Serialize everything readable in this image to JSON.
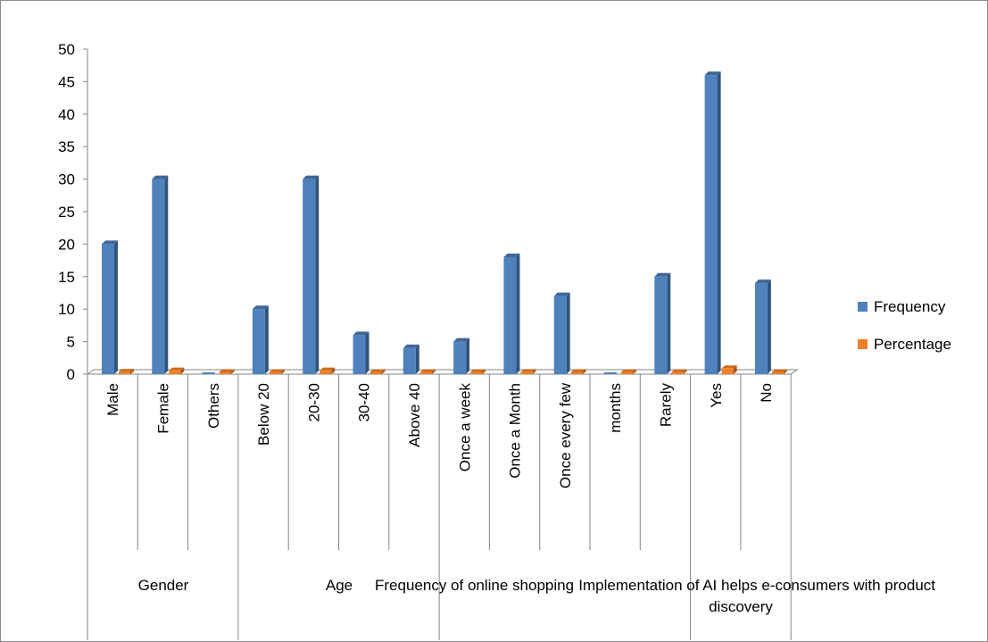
{
  "chart_data": {
    "type": "bar",
    "categories": [
      "Male",
      "Female",
      "Others",
      "Below 20",
      "20-30",
      "30-40",
      "Above 40",
      "Once a week",
      "Once a Month",
      "Once every few",
      "months",
      "Rarely",
      "Yes",
      "No"
    ],
    "groups": [
      {
        "label": "Gender",
        "span": 3
      },
      {
        "label": "Age",
        "span": 4
      },
      {
        "label": "Frequency of online shopping",
        "span": 5
      },
      {
        "label": "Implementation of AI helps e-consumers with product discovery",
        "span": 2
      }
    ],
    "series": [
      {
        "name": "Frequency",
        "color": "#4f81bd",
        "values": [
          20,
          30,
          0,
          10,
          30,
          6,
          4,
          5,
          18,
          12,
          0,
          15,
          46,
          14
        ]
      },
      {
        "name": "Percentage",
        "color": "#f07f27",
        "values": [
          0.4,
          0.6,
          0,
          0.2,
          0.6,
          0.12,
          0.08,
          0.1,
          0.36,
          0.24,
          0,
          0.3,
          0.92,
          0.28
        ]
      }
    ],
    "ylim": [
      0,
      50
    ],
    "yticks": [
      0,
      5,
      10,
      15,
      20,
      25,
      30,
      35,
      40,
      45,
      50
    ],
    "grid": false,
    "legend_position": "right"
  }
}
